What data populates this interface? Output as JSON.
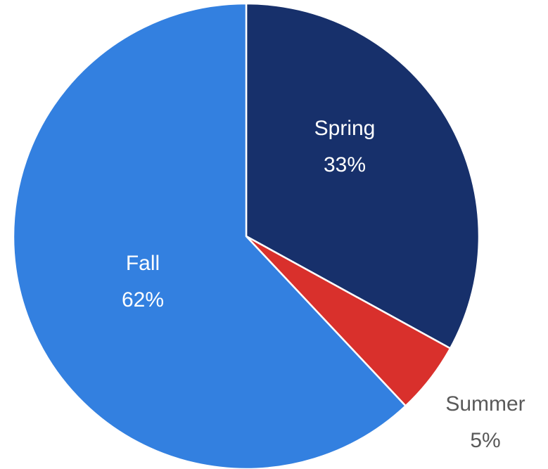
{
  "chart_data": {
    "type": "pie",
    "categories": [
      "Spring",
      "Summer",
      "Fall"
    ],
    "values": [
      33,
      5,
      62
    ],
    "value_labels": [
      "33%",
      "5%",
      "62%"
    ],
    "colors": [
      "#17306b",
      "#d9302c",
      "#3380e0"
    ]
  }
}
